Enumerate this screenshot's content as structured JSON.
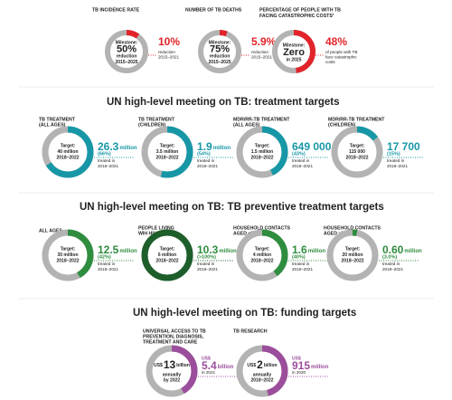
{
  "milestones": {
    "items": [
      {
        "title": [
          "TB INCIDENCE RATE"
        ],
        "center": [
          "Milestone:",
          "50%",
          "reduction",
          "2015–2025"
        ],
        "value_label": "10%",
        "progress": 10,
        "note": [
          "reduction",
          "2015–2021"
        ]
      },
      {
        "title": [
          "NUMBER OF TB DEATHS"
        ],
        "center": [
          "Milestone:",
          "75%",
          "reduction",
          "2015–2025"
        ],
        "value_label": "5.9%",
        "progress": 5.9,
        "note": [
          "reduction",
          "2015–2021"
        ]
      },
      {
        "title": [
          "PERCENTAGE OF PEOPLE WITH TB",
          "FACING CATASTROPHIC COSTS¹"
        ],
        "center": [
          "Milestone:",
          "Zero",
          "in 2025"
        ],
        "value_label": "48%",
        "progress": 48,
        "note": [
          "of people with TB",
          "face catastrophic",
          "costs"
        ]
      }
    ]
  },
  "sections": [
    {
      "title": "UN high-level meeting on TB: treatment targets",
      "items": [
        {
          "title": [
            "TB TREATMENT",
            "(ALL AGES)"
          ],
          "center": [
            "Target:",
            "40 million",
            "2018–2022"
          ],
          "amount": "26.3",
          "unit": "million",
          "pct_label": "(66%)",
          "progress": 66,
          "note": [
            "treated in",
            "2018–2021"
          ]
        },
        {
          "title": [
            "TB TREATMENT",
            "(CHILDREN)"
          ],
          "center": [
            "Target:",
            "3.5 million",
            "2018–2022"
          ],
          "amount": "1.9",
          "unit": "million",
          "pct_label": "(54%)",
          "progress": 54,
          "note": [
            "treated in",
            "2018–2021"
          ]
        },
        {
          "title": [
            "MDR/RR-TB TREATMENT",
            "(ALL AGES)"
          ],
          "center": [
            "Target:",
            "1.5 million",
            "2018–2022"
          ],
          "amount": "649 000",
          "pct_label": "(43%)",
          "progress": 43,
          "note": [
            "treated in",
            "2018–2021"
          ]
        },
        {
          "title": [
            "MDR/RR-TB TREATMENT",
            "(CHILDREN)"
          ],
          "center": [
            "Target:",
            "115 000",
            "2018–2022"
          ],
          "amount": "17 700",
          "pct_label": "(15%)",
          "progress": 15,
          "note": [
            "treated in",
            "2018–2021"
          ]
        }
      ]
    },
    {
      "title": "UN high-level meeting on TB: TB preventive treatment targets",
      "items": [
        {
          "title": [
            "ALL AGES"
          ],
          "center": [
            "Target:",
            "30 million",
            "2018–2022"
          ],
          "amount": "12.5",
          "unit": "million",
          "pct_label": "(42%)",
          "progress": 42,
          "note": [
            "treated in",
            "2018–2021"
          ]
        },
        {
          "title": [
            "PEOPLE LIVING",
            "WIH HIV"
          ],
          "center": [
            "Target:",
            "6 million",
            "2018–2022"
          ],
          "amount": "10.3",
          "unit": "million",
          "pct_label": "(>100%)",
          "progress": 100,
          "note": [
            "treated in",
            "2018–2021"
          ]
        },
        {
          "title": [
            "HOUSEHOLD CONTACTS",
            "AGED <5 YEARS"
          ],
          "center": [
            "Target:",
            "4 million",
            "2018–2022"
          ],
          "amount": "1.6",
          "unit": "million",
          "pct_label": "(40%)",
          "progress": 40,
          "note": [
            "treated in",
            "2018–2021"
          ]
        },
        {
          "title": [
            "HOUSEHOLD CONTACTS",
            "AGED ≥5 YEARS"
          ],
          "center": [
            "Target:",
            "20 million",
            "2018–2022"
          ],
          "amount": "0.60",
          "unit": "million",
          "pct_label": "(3.0%)",
          "progress": 3,
          "note": [
            "treated in",
            "2018–2021"
          ]
        }
      ]
    },
    {
      "title": "UN high-level meeting on TB: funding targets",
      "items": [
        {
          "title": [
            "UNIVERSAL ACCESS TO TB",
            "PREVENTION, DIAGNOSIS,",
            "TREATMENT AND CARE"
          ],
          "center": [
            "US$",
            "13",
            "billion",
            "annually",
            "by 2022"
          ],
          "prefix": "US$",
          "amount": "5.4",
          "unit": "billion",
          "progress": 42,
          "note": [
            "in 2021"
          ]
        },
        {
          "title": [
            "TB RESEARCH"
          ],
          "center": [
            "US$",
            "2",
            "billion",
            "annually",
            "2018–2022"
          ],
          "prefix": "US$",
          "amount": "915",
          "unit": "million",
          "progress": 46,
          "note": [
            "in 2020"
          ]
        }
      ]
    }
  ]
}
